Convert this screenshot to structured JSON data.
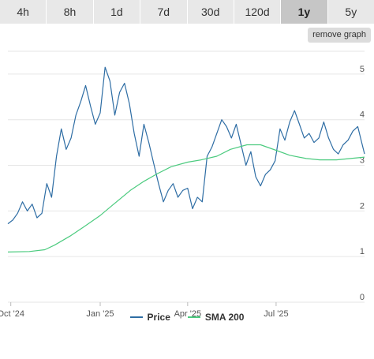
{
  "tabs": [
    {
      "label": "4h"
    },
    {
      "label": "8h"
    },
    {
      "label": "1d"
    },
    {
      "label": "7d"
    },
    {
      "label": "30d"
    },
    {
      "label": "120d"
    },
    {
      "label": "1y",
      "active": true
    },
    {
      "label": "5y"
    }
  ],
  "remove_graph_label": "remove graph",
  "colors": {
    "price": "#2e6da4",
    "sma": "#4ccb7f",
    "grid": "#e6e6e6",
    "axis_text": "#555555",
    "active_tab": "#c6c6c6",
    "tab": "#e8e8e8"
  },
  "chart_data": {
    "type": "line",
    "ylim": [
      0,
      5.5
    ],
    "yticks": [
      0,
      1,
      2,
      3,
      4,
      5
    ],
    "x_range": [
      "2024-09-28",
      "2025-09-30"
    ],
    "xticks": [
      {
        "date": "2024-10-01",
        "label": "Oct '24"
      },
      {
        "date": "2025-01-01",
        "label": "Jan '25"
      },
      {
        "date": "2025-04-01",
        "label": "Apr '25"
      },
      {
        "date": "2025-07-01",
        "label": "Jul '25"
      }
    ],
    "legend": [
      "Price",
      "SMA 200"
    ],
    "series": [
      {
        "name": "Price",
        "points": [
          [
            "2024-09-28",
            1.72
          ],
          [
            "2024-10-03",
            1.8
          ],
          [
            "2024-10-08",
            1.95
          ],
          [
            "2024-10-13",
            2.2
          ],
          [
            "2024-10-18",
            2.0
          ],
          [
            "2024-10-23",
            2.15
          ],
          [
            "2024-10-28",
            1.85
          ],
          [
            "2024-11-02",
            1.95
          ],
          [
            "2024-11-07",
            2.6
          ],
          [
            "2024-11-12",
            2.3
          ],
          [
            "2024-11-17",
            3.2
          ],
          [
            "2024-11-22",
            3.8
          ],
          [
            "2024-11-27",
            3.35
          ],
          [
            "2024-12-02",
            3.6
          ],
          [
            "2024-12-07",
            4.1
          ],
          [
            "2024-12-12",
            4.4
          ],
          [
            "2024-12-17",
            4.75
          ],
          [
            "2024-12-22",
            4.3
          ],
          [
            "2024-12-27",
            3.9
          ],
          [
            "2025-01-01",
            4.15
          ],
          [
            "2025-01-06",
            5.15
          ],
          [
            "2025-01-11",
            4.85
          ],
          [
            "2025-01-16",
            4.1
          ],
          [
            "2025-01-21",
            4.6
          ],
          [
            "2025-01-26",
            4.8
          ],
          [
            "2025-01-31",
            4.35
          ],
          [
            "2025-02-05",
            3.7
          ],
          [
            "2025-02-10",
            3.2
          ],
          [
            "2025-02-15",
            3.9
          ],
          [
            "2025-02-20",
            3.5
          ],
          [
            "2025-02-25",
            3.05
          ],
          [
            "2025-03-02",
            2.6
          ],
          [
            "2025-03-07",
            2.2
          ],
          [
            "2025-03-12",
            2.45
          ],
          [
            "2025-03-17",
            2.6
          ],
          [
            "2025-03-22",
            2.3
          ],
          [
            "2025-03-27",
            2.45
          ],
          [
            "2025-04-01",
            2.5
          ],
          [
            "2025-04-06",
            2.05
          ],
          [
            "2025-04-11",
            2.3
          ],
          [
            "2025-04-16",
            2.2
          ],
          [
            "2025-04-21",
            3.2
          ],
          [
            "2025-04-26",
            3.4
          ],
          [
            "2025-05-01",
            3.7
          ],
          [
            "2025-05-06",
            4.0
          ],
          [
            "2025-05-11",
            3.85
          ],
          [
            "2025-05-16",
            3.6
          ],
          [
            "2025-05-21",
            3.9
          ],
          [
            "2025-05-26",
            3.45
          ],
          [
            "2025-05-31",
            3.0
          ],
          [
            "2025-06-05",
            3.3
          ],
          [
            "2025-06-10",
            2.75
          ],
          [
            "2025-06-15",
            2.55
          ],
          [
            "2025-06-20",
            2.8
          ],
          [
            "2025-06-25",
            2.9
          ],
          [
            "2025-06-30",
            3.1
          ],
          [
            "2025-07-05",
            3.8
          ],
          [
            "2025-07-10",
            3.55
          ],
          [
            "2025-07-15",
            3.95
          ],
          [
            "2025-07-20",
            4.2
          ],
          [
            "2025-07-25",
            3.9
          ],
          [
            "2025-07-30",
            3.6
          ],
          [
            "2025-08-04",
            3.7
          ],
          [
            "2025-08-09",
            3.5
          ],
          [
            "2025-08-14",
            3.6
          ],
          [
            "2025-08-19",
            3.95
          ],
          [
            "2025-08-24",
            3.6
          ],
          [
            "2025-08-29",
            3.35
          ],
          [
            "2025-09-03",
            3.25
          ],
          [
            "2025-09-08",
            3.45
          ],
          [
            "2025-09-13",
            3.55
          ],
          [
            "2025-09-18",
            3.75
          ],
          [
            "2025-09-23",
            3.85
          ],
          [
            "2025-09-30",
            3.25
          ]
        ]
      },
      {
        "name": "SMA 200",
        "points": [
          [
            "2024-09-28",
            1.1
          ],
          [
            "2024-10-20",
            1.11
          ],
          [
            "2024-11-05",
            1.15
          ],
          [
            "2024-11-15",
            1.25
          ],
          [
            "2024-12-01",
            1.45
          ],
          [
            "2024-12-15",
            1.65
          ],
          [
            "2025-01-01",
            1.9
          ],
          [
            "2025-01-15",
            2.15
          ],
          [
            "2025-02-01",
            2.45
          ],
          [
            "2025-02-15",
            2.65
          ],
          [
            "2025-03-01",
            2.82
          ],
          [
            "2025-03-15",
            2.97
          ],
          [
            "2025-04-01",
            3.07
          ],
          [
            "2025-04-15",
            3.12
          ],
          [
            "2025-05-01",
            3.2
          ],
          [
            "2025-05-15",
            3.35
          ],
          [
            "2025-06-01",
            3.45
          ],
          [
            "2025-06-15",
            3.45
          ],
          [
            "2025-07-01",
            3.33
          ],
          [
            "2025-07-15",
            3.22
          ],
          [
            "2025-08-01",
            3.15
          ],
          [
            "2025-08-15",
            3.12
          ],
          [
            "2025-09-01",
            3.12
          ],
          [
            "2025-09-30",
            3.18
          ]
        ]
      }
    ]
  }
}
